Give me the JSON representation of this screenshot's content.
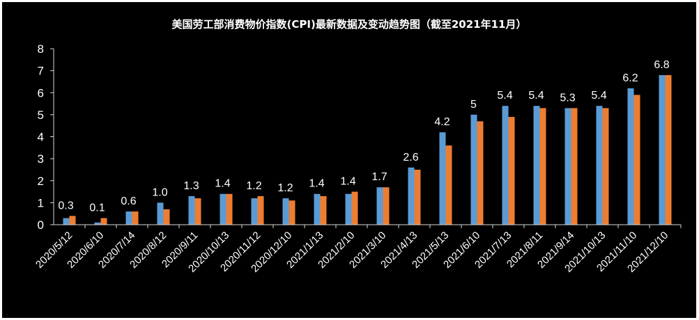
{
  "chart_data": {
    "type": "bar",
    "title": "美国劳工部消费物价指数(CPI)最新数据及变动趋势图（截至2021年11月）",
    "xlabel": "",
    "ylabel": "",
    "ylim": [
      0,
      8
    ],
    "yticks": [
      0,
      1,
      2,
      3,
      4,
      5,
      6,
      7,
      8
    ],
    "grid": false,
    "legend": "none",
    "categories": [
      "2020/5/12",
      "2020/6/10",
      "2020/7/14",
      "2020/8/12",
      "2020/9/11",
      "2020/10/13",
      "2020/11/12",
      "2020/12/10",
      "2021/1/13",
      "2021/2/10",
      "2021/3/10",
      "2021/4/13",
      "2021/5/13",
      "2021/6/10",
      "2021/7/13",
      "2021/8/11",
      "2021/9/14",
      "2021/10/13",
      "2021/11/10",
      "2021/12/10"
    ],
    "data_labels": [
      "0.3",
      "0.1",
      "0.6",
      "1.0",
      "1.3",
      "1.4",
      "1.2",
      "1.2",
      "1.4",
      "1.4",
      "1.7",
      "2.6",
      "4.2",
      "5",
      "5.4",
      "5.4",
      "5.3",
      "5.4",
      "6.2",
      "6.8"
    ],
    "series": [
      {
        "color": "#5b9bd5",
        "values": [
          0.3,
          0.1,
          0.6,
          1.0,
          1.3,
          1.4,
          1.2,
          1.2,
          1.4,
          1.4,
          1.7,
          2.6,
          4.2,
          5.0,
          5.4,
          5.4,
          5.3,
          5.4,
          6.2,
          6.8
        ]
      },
      {
        "color": "#ed7d31",
        "values": [
          0.4,
          0.3,
          0.6,
          0.7,
          1.2,
          1.4,
          1.3,
          1.1,
          1.3,
          1.5,
          1.7,
          2.5,
          3.6,
          4.7,
          4.9,
          5.3,
          5.3,
          5.3,
          5.9,
          6.8
        ]
      }
    ]
  }
}
